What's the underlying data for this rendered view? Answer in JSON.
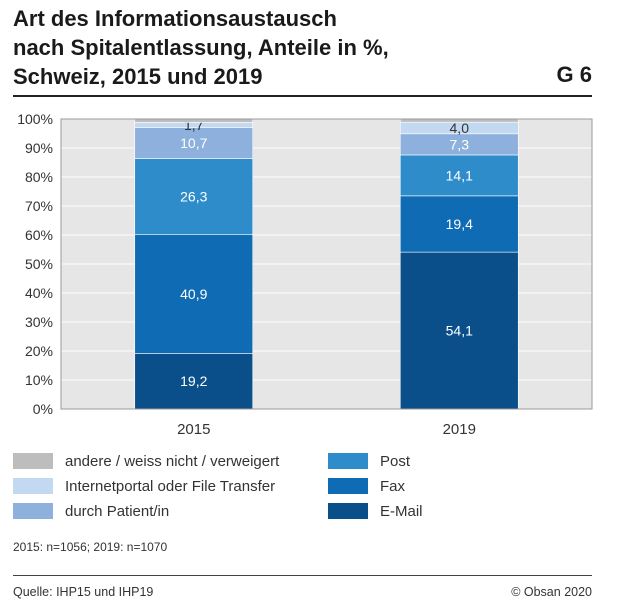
{
  "header": {
    "title_lines": [
      "Art des Informationsaustausch",
      "nach Spitalentlassung, Anteile in %,",
      "Schweiz, 2015 und 2019"
    ],
    "graph_id": "G 6"
  },
  "footer": {
    "note": "2015: n=1056; 2019: n=1070",
    "source": "Quelle: IHP15 und IHP19",
    "copyright": "© Obsan 2020"
  },
  "chart_data": {
    "type": "bar",
    "stacked": true,
    "categories": [
      "2015",
      "2019"
    ],
    "ylim": [
      0,
      100
    ],
    "y_ticks": [
      "0%",
      "10%",
      "20%",
      "30%",
      "40%",
      "50%",
      "60%",
      "70%",
      "80%",
      "90%",
      "100%"
    ],
    "grid": true,
    "legend_position": "bottom",
    "series": [
      {
        "name": "E-Mail",
        "color": "#0b4f8a",
        "values": [
          19.2,
          54.1
        ],
        "labels": [
          "19,2",
          "54,1"
        ]
      },
      {
        "name": "Fax",
        "color": "#0f6bb3",
        "values": [
          40.9,
          19.4
        ],
        "labels": [
          "40,9",
          "19,4"
        ]
      },
      {
        "name": "Post",
        "color": "#2f8ccb",
        "values": [
          26.3,
          14.1
        ],
        "labels": [
          "26,3",
          "14,1"
        ]
      },
      {
        "name": "durch Patient/in",
        "color": "#8db1dc",
        "values": [
          10.7,
          7.3
        ],
        "labels": [
          "10,7",
          "7,3"
        ]
      },
      {
        "name": "Internetportal oder File Transfer",
        "color": "#c3d9f1",
        "values": [
          1.7,
          4.0
        ],
        "labels": [
          "1,7",
          "4,0"
        ]
      },
      {
        "name": "andere / weiss nicht / verweigert",
        "color": "#bdbdbd",
        "values": [
          1.2,
          1.1
        ],
        "labels": [
          "",
          ""
        ]
      }
    ]
  }
}
